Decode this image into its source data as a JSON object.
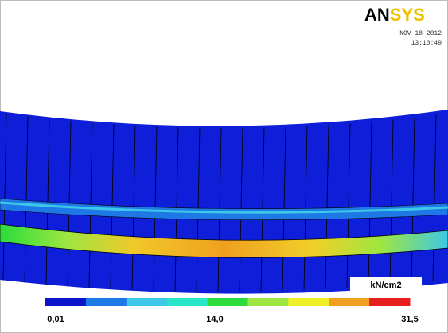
{
  "logo": {
    "bold": "AN",
    "accent": "SYS"
  },
  "date": "NOV 18 2012",
  "time": "13:10:49",
  "legend": {
    "unit": "kN/cm2",
    "labels": [
      "0,01",
      "14,0",
      "31,5"
    ],
    "colors": [
      "#0a14c8",
      "#1e78e6",
      "#3cc8e6",
      "#28e6c8",
      "#2adc3c",
      "#9ee640",
      "#f0f028",
      "#f0a020",
      "#e61e1e"
    ]
  }
}
